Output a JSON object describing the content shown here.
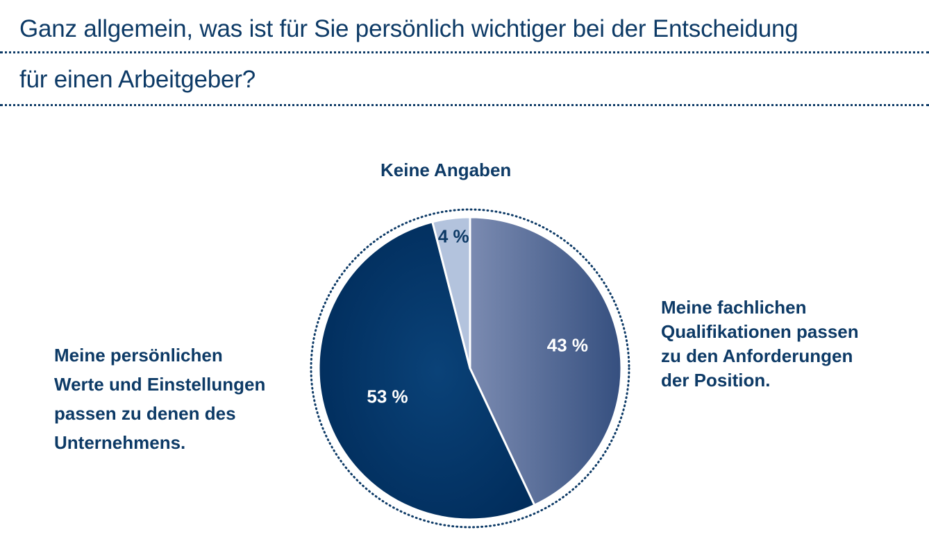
{
  "title": {
    "line1": "Ganz allgemein, was ist für Sie persönlich wichtiger bei der Entscheidung",
    "line2": "für einen Arbeitgeber?"
  },
  "chart_data": {
    "type": "pie",
    "title": "Ganz allgemein, was ist für Sie persönlich wichtiger bei der Entscheidung für einen Arbeitgeber?",
    "slices": [
      {
        "name": "Meine fachlichen Qualifikationen passen zu den Anforderungen der Position.",
        "value": 43,
        "label": "43 %",
        "color": "#5a6f9a",
        "label_color": "#ffffff"
      },
      {
        "name": "Meine persönlichen Werte und Einstellungen passen zu denen des Unternehmens.",
        "value": 53,
        "label": "53 %",
        "color": "#023366",
        "label_color": "#ffffff"
      },
      {
        "name": "Keine Angaben",
        "value": 4,
        "label": "4 %",
        "color": "#b3c3dd",
        "label_color": "#0d3a66"
      }
    ],
    "start": "12 o'clock",
    "direction": "clockwise",
    "border": "dotted"
  },
  "labels": {
    "keine": [
      "Keine Angaben"
    ],
    "fachlich": [
      "Meine fachlichen",
      "Qualifikationen passen",
      "zu den Anforderungen",
      "der Position."
    ],
    "persoenlich": [
      "Meine persönlichen",
      "Werte und Einstellungen",
      "passen zu denen des",
      "Unternehmens."
    ]
  }
}
